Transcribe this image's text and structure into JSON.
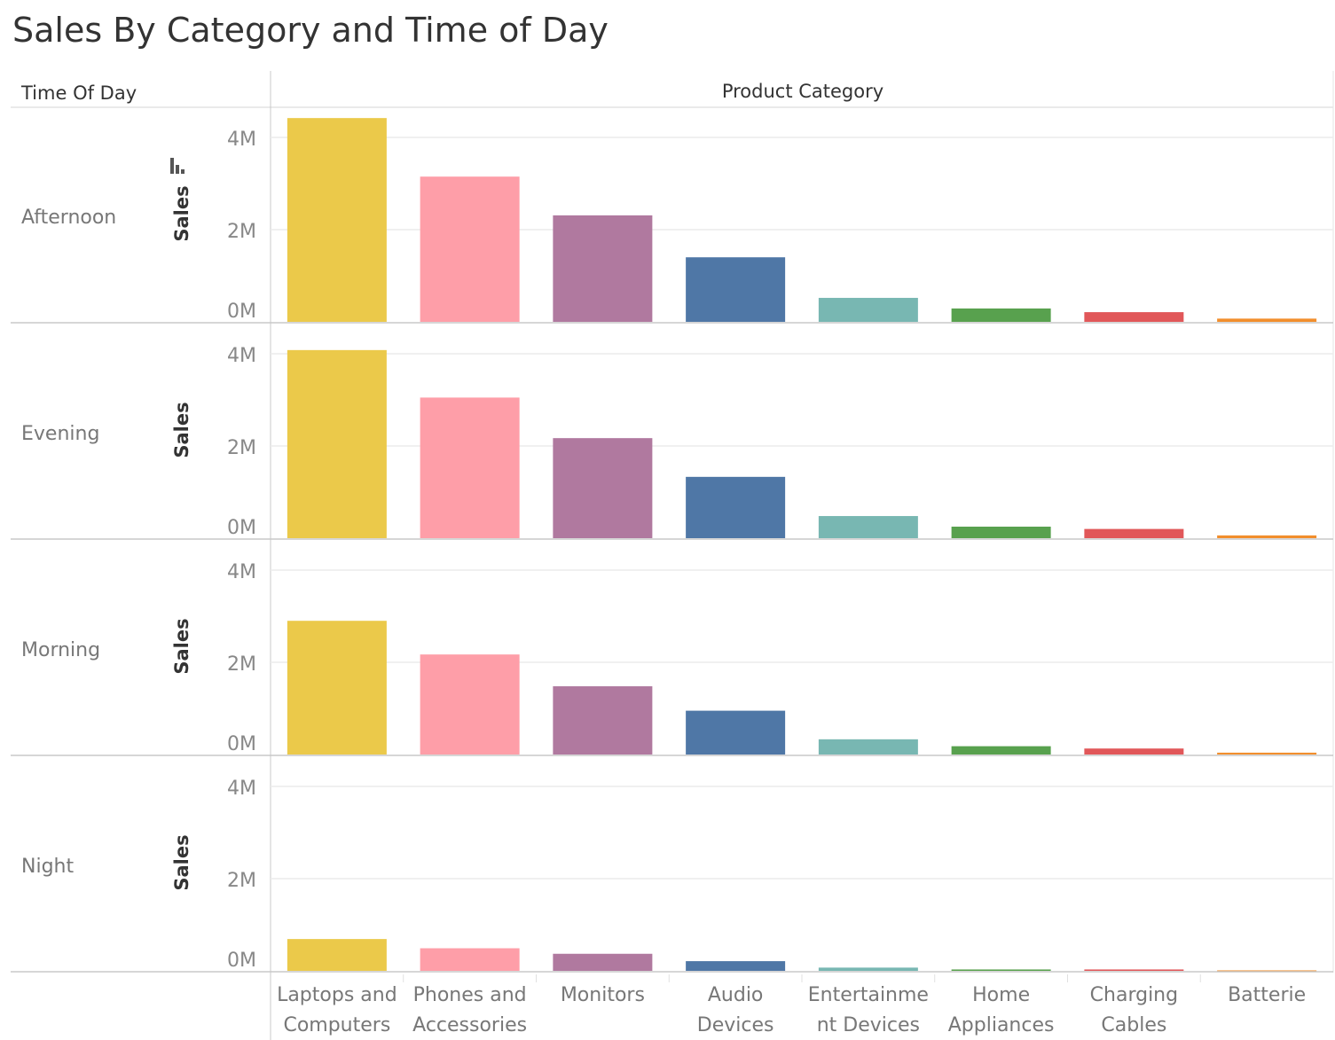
{
  "title": "Sales By Category and Time of Day",
  "row_header": "Time Of Day",
  "column_header": "Product Category",
  "axis_title": "Sales",
  "chart_data": {
    "type": "bar",
    "title": "Sales By Category and Time of Day",
    "xlabel": "Product Category",
    "ylabel": "Sales",
    "ylim": [
      0,
      4600000
    ],
    "yticks": [
      0,
      2000000,
      4000000
    ],
    "ytick_labels": [
      "0M",
      "2M",
      "4M"
    ],
    "grid": true,
    "categories": [
      "Laptops and Computers",
      "Phones and Accessories",
      "Monitors",
      "Audio Devices",
      "Entertainment Devices",
      "Home Appliances",
      "Charging Cables",
      "Batteries"
    ],
    "category_labels": [
      [
        "Laptops and",
        "Computers"
      ],
      [
        "Phones and",
        "Accessories"
      ],
      [
        "Monitors"
      ],
      [
        "Audio",
        "Devices"
      ],
      [
        "Entertainme",
        "nt Devices"
      ],
      [
        "Home",
        "Appliances"
      ],
      [
        "Charging",
        "Cables"
      ],
      [
        "Batterie"
      ]
    ],
    "colors": [
      "#EBC94A",
      "#FE9EA8",
      "#B0799F",
      "#4F77A6",
      "#78B7B2",
      "#58A14E",
      "#E15759",
      "#F28E2C"
    ],
    "panels": [
      {
        "name": "Afternoon",
        "values": [
          4420000,
          3150000,
          2310000,
          1400000,
          520000,
          290000,
          210000,
          70000
        ]
      },
      {
        "name": "Evening",
        "values": [
          4080000,
          3050000,
          2170000,
          1330000,
          480000,
          250000,
          200000,
          60000
        ]
      },
      {
        "name": "Morning",
        "values": [
          2900000,
          2170000,
          1480000,
          950000,
          330000,
          180000,
          130000,
          40000
        ]
      },
      {
        "name": "Night",
        "values": [
          690000,
          490000,
          370000,
          210000,
          70000,
          30000,
          30000,
          10000
        ]
      }
    ]
  }
}
